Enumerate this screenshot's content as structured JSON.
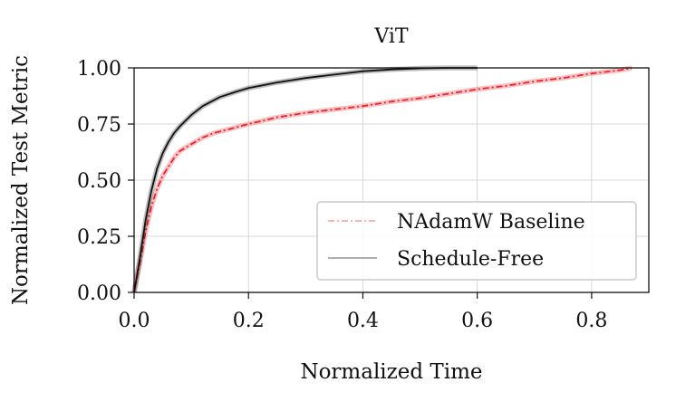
{
  "chart_data": {
    "type": "line",
    "title": "ViT",
    "xlabel": "Normalized Time",
    "ylabel": "Normalized Test Metric",
    "xlim": [
      0.0,
      0.9
    ],
    "ylim": [
      0.0,
      1.0
    ],
    "xticks": [
      0.0,
      0.2,
      0.4,
      0.6,
      0.8
    ],
    "xtick_labels": [
      "0.0",
      "0.2",
      "0.4",
      "0.6",
      "0.8"
    ],
    "yticks": [
      0.0,
      0.25,
      0.5,
      0.75,
      1.0
    ],
    "ytick_labels": [
      "0.00",
      "0.25",
      "0.50",
      "0.75",
      "1.00"
    ],
    "grid": true,
    "legend_position": "lower-right",
    "series": [
      {
        "name": "NAdamW Baseline",
        "color": "#e8242a",
        "style": "dashdot",
        "x": [
          0.0,
          0.01,
          0.02,
          0.03,
          0.04,
          0.05,
          0.06,
          0.07,
          0.08,
          0.1,
          0.12,
          0.14,
          0.17,
          0.2,
          0.25,
          0.3,
          0.35,
          0.4,
          0.45,
          0.5,
          0.55,
          0.6,
          0.65,
          0.7,
          0.75,
          0.8,
          0.85,
          0.87
        ],
        "y": [
          0.0,
          0.13,
          0.27,
          0.38,
          0.46,
          0.52,
          0.56,
          0.6,
          0.63,
          0.66,
          0.69,
          0.71,
          0.73,
          0.75,
          0.78,
          0.8,
          0.815,
          0.83,
          0.85,
          0.865,
          0.885,
          0.905,
          0.92,
          0.94,
          0.955,
          0.975,
          0.99,
          1.0
        ]
      },
      {
        "name": "Schedule-Free",
        "color": "#111111",
        "style": "solid",
        "x": [
          0.0,
          0.01,
          0.02,
          0.03,
          0.04,
          0.05,
          0.06,
          0.07,
          0.08,
          0.1,
          0.12,
          0.15,
          0.18,
          0.2,
          0.25,
          0.3,
          0.35,
          0.4,
          0.45,
          0.5,
          0.55,
          0.6
        ],
        "y": [
          0.0,
          0.15,
          0.32,
          0.45,
          0.55,
          0.62,
          0.67,
          0.71,
          0.74,
          0.79,
          0.83,
          0.87,
          0.895,
          0.91,
          0.935,
          0.955,
          0.97,
          0.985,
          0.993,
          0.998,
          1.0,
          1.0
        ]
      }
    ]
  }
}
